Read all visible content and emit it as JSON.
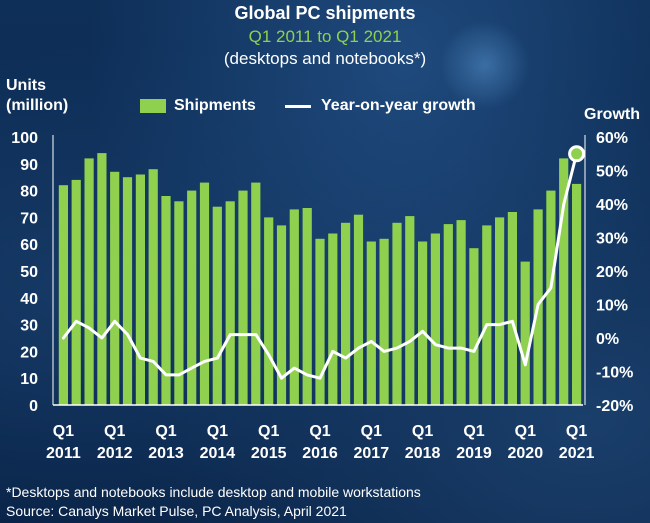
{
  "header": {
    "title": "Global PC shipments",
    "subtitle": "Q1 2011 to Q1 2021",
    "subtitle2": "(desktops and notebooks*)"
  },
  "axes": {
    "left_label_line1": "Units",
    "left_label_line2": "(million)",
    "right_label": "Growth"
  },
  "legend": {
    "shipments": "Shipments",
    "growth": "Year-on-year growth"
  },
  "footer": {
    "footnote": "*Desktops and notebooks include desktop and mobile workstations",
    "source": "Source: Canalys Market Pulse, PC Analysis, April 2021"
  },
  "colors": {
    "bar": "#8fd14f",
    "line": "#ffffff",
    "background": "#0b2a52",
    "subtitle": "#8fd14f"
  },
  "chart_data": {
    "type": "bar",
    "title": "Global PC shipments",
    "subtitle": "Q1 2011 to Q1 2021",
    "xlabel": "",
    "ylabel": "Units (million)",
    "y2label": "Growth",
    "ylim": [
      0,
      100
    ],
    "y2lim": [
      -20,
      60
    ],
    "yticks": [
      0,
      10,
      20,
      30,
      40,
      50,
      60,
      70,
      80,
      90,
      100
    ],
    "y2ticks": [
      "-20%",
      "-10%",
      "0%",
      "10%",
      "20%",
      "30%",
      "40%",
      "50%",
      "60%"
    ],
    "x_tick_labels": [
      {
        "quarter": "Q1",
        "year": "2011",
        "index": 0
      },
      {
        "quarter": "Q1",
        "year": "2012",
        "index": 4
      },
      {
        "quarter": "Q1",
        "year": "2013",
        "index": 8
      },
      {
        "quarter": "Q1",
        "year": "2014",
        "index": 12
      },
      {
        "quarter": "Q1",
        "year": "2015",
        "index": 16
      },
      {
        "quarter": "Q1",
        "year": "2016",
        "index": 20
      },
      {
        "quarter": "Q1",
        "year": "2017",
        "index": 24
      },
      {
        "quarter": "Q1",
        "year": "2018",
        "index": 28
      },
      {
        "quarter": "Q1",
        "year": "2019",
        "index": 32
      },
      {
        "quarter": "Q1",
        "year": "2020",
        "index": 36
      },
      {
        "quarter": "Q1",
        "year": "2021",
        "index": 40
      }
    ],
    "series": [
      {
        "name": "Shipments",
        "type": "bar",
        "axis": "left",
        "values": [
          82,
          84,
          92,
          94,
          87,
          85,
          86,
          88,
          78,
          76,
          80,
          83,
          74,
          76,
          80,
          83,
          70,
          67,
          73,
          73.5,
          62,
          64,
          68,
          71,
          61,
          62,
          68,
          70.5,
          61,
          64,
          67.5,
          69,
          58.5,
          67,
          70,
          72,
          53.5,
          73,
          80,
          92,
          82.5
        ]
      },
      {
        "name": "Year-on-year growth",
        "type": "line",
        "axis": "right",
        "values": [
          0,
          5,
          3,
          0,
          5,
          1,
          -6,
          -7,
          -11,
          -11,
          -9,
          -7,
          -6,
          1,
          1,
          1,
          -5,
          -12,
          -9,
          -11,
          -12,
          -4,
          -6,
          -3,
          -1,
          -4,
          -3,
          -1,
          2,
          -2,
          -3,
          -3,
          -4,
          4,
          4,
          5,
          -8,
          10,
          15,
          40,
          55
        ]
      }
    ],
    "highlight_point_index": 40,
    "legend_position": "top",
    "grid": false
  }
}
